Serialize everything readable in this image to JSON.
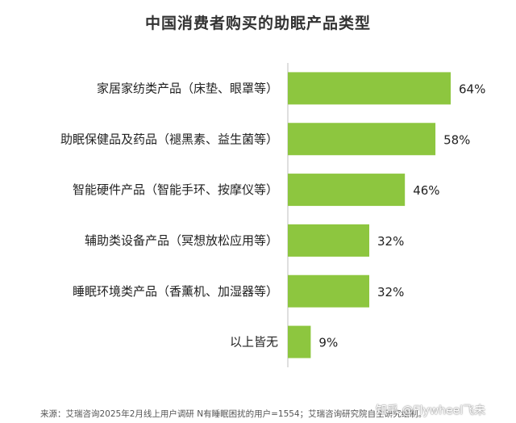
{
  "chart_data": {
    "type": "bar",
    "orientation": "horizontal",
    "title": "中国消费者购买的助眠产品类型",
    "categories": [
      "家居家纺类产品（床垫、眼罩等）",
      "助眠保健品及药品（褪黑素、益生菌等）",
      "智能硬件产品（智能手环、按摩仪等）",
      "辅助类设备产品（冥想放松应用等）",
      "睡眠环境类产品（香薰机、加湿器等）",
      "以上皆无"
    ],
    "values": [
      64,
      58,
      46,
      32,
      32,
      9
    ],
    "value_labels": [
      "64%",
      "58%",
      "46%",
      "32%",
      "32%",
      "9%"
    ],
    "unit": "%",
    "xlim": [
      0,
      70
    ],
    "grid": false,
    "legend": "none",
    "colors": {
      "bar": "#8DC63F",
      "axis": "#BFBFBF",
      "text": "#222222"
    }
  },
  "footnote": "来源：艾瑞咨询2025年2月线上用户调研 N有睡眠困扰的用户=1554；艾瑞咨询研究院自主研究绘制。",
  "watermark": "知乎 @Flywheel飞未"
}
